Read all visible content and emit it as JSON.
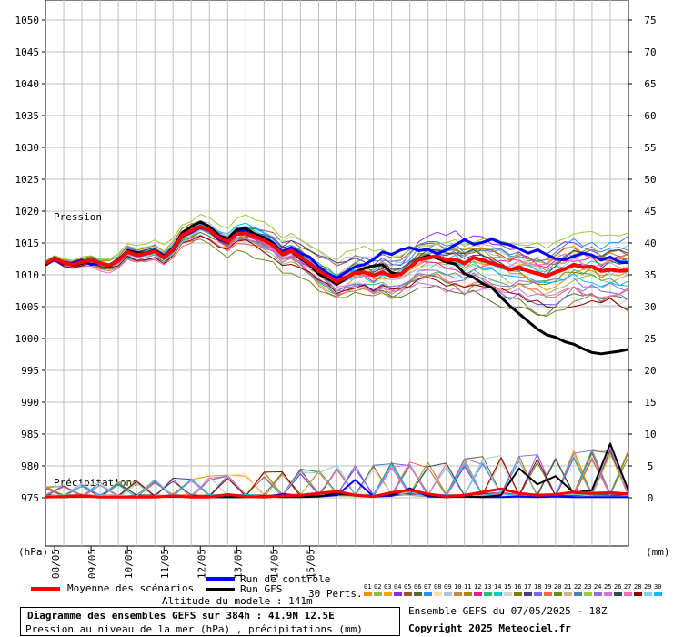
{
  "chart_data": {
    "type": "line",
    "title": "Diagramme des ensembles GEFS sur 384h : 41.9N 12.5E",
    "subtitle": "Pression au niveau de la mer (hPa) , précipitations (mm)",
    "left_unit": "(hPa)",
    "right_unit": "(mm)",
    "pressure_label": "Pression",
    "precip_label": "Précipitations",
    "pressure_ticks": [
      1050,
      1045,
      1040,
      1035,
      1030,
      1025,
      1020,
      1015,
      1010,
      1005,
      1000,
      995,
      990,
      985,
      980,
      975
    ],
    "precip_ticks": [
      75,
      70,
      65,
      60,
      55,
      50,
      45,
      40,
      35,
      30,
      25,
      20,
      15,
      10,
      5,
      0
    ],
    "x_labels": [
      "08/05",
      "09/05",
      "10/05",
      "11/05",
      "12/05",
      "13/05",
      "14/05",
      "15/05"
    ],
    "x_range_hours": [
      0,
      384
    ],
    "grid": true,
    "series_pressure": [
      {
        "name": "Moyenne des scénarios",
        "x": [
          0,
          6,
          12,
          18,
          24,
          30,
          36,
          42,
          48,
          54,
          60,
          66,
          72,
          78,
          84,
          90,
          96,
          102,
          108,
          114,
          120,
          126,
          132,
          138,
          144,
          150,
          156,
          162,
          168,
          174,
          180,
          186,
          192,
          198,
          204,
          210,
          216,
          222,
          228,
          234,
          240,
          246,
          252,
          258,
          264,
          270,
          276,
          282,
          288,
          294,
          300,
          306,
          312,
          318,
          324,
          330,
          336,
          342,
          348,
          354,
          360,
          366,
          372,
          378,
          384
        ],
        "values": [
          1011.8,
          1012.6,
          1011.9,
          1011.6,
          1012.0,
          1012.3,
          1011.8,
          1011.5,
          1012.2,
          1013.6,
          1013.1,
          1013.3,
          1013.7,
          1012.7,
          1014.0,
          1016.2,
          1016.9,
          1017.6,
          1017.0,
          1015.9,
          1015.2,
          1016.4,
          1016.5,
          1016.0,
          1015.4,
          1014.6,
          1013.3,
          1013.8,
          1012.8,
          1011.8,
          1010.6,
          1009.8,
          1008.9,
          1009.6,
          1010.3,
          1010.4,
          1009.9,
          1010.4,
          1009.8,
          1010.1,
          1011.2,
          1012.4,
          1012.7,
          1012.9,
          1012.3,
          1012.4,
          1011.8,
          1012.7,
          1012.3,
          1011.8,
          1011.4,
          1010.8,
          1011.2,
          1010.6,
          1010.2,
          1009.8,
          1010.4,
          1010.9,
          1011.6,
          1011.2,
          1011.3,
          1010.6,
          1010.8,
          1010.6,
          1010.7
        ]
      },
      {
        "name": "Run de contrôle",
        "x": [
          0,
          6,
          12,
          18,
          24,
          30,
          36,
          42,
          48,
          54,
          60,
          66,
          72,
          78,
          84,
          90,
          96,
          102,
          108,
          114,
          120,
          126,
          132,
          138,
          144,
          150,
          156,
          162,
          168,
          174,
          180,
          186,
          192,
          198,
          204,
          210,
          216,
          222,
          228,
          234,
          240,
          246,
          252,
          258,
          264,
          270,
          276,
          282,
          288,
          294,
          300,
          306,
          312,
          318,
          324,
          330,
          336,
          342,
          348,
          354,
          360,
          366,
          372,
          378,
          384
        ],
        "values": [
          1011.6,
          1012.4,
          1011.7,
          1011.9,
          1012.3,
          1011.6,
          1011.8,
          1011.5,
          1012.4,
          1013.5,
          1013.0,
          1013.2,
          1013.9,
          1013.0,
          1013.8,
          1016.0,
          1016.7,
          1017.4,
          1016.9,
          1015.6,
          1015.0,
          1016.7,
          1016.9,
          1016.1,
          1015.9,
          1015.0,
          1013.6,
          1014.3,
          1013.4,
          1012.8,
          1011.3,
          1010.2,
          1009.5,
          1010.4,
          1011.3,
          1011.6,
          1012.4,
          1013.6,
          1013.2,
          1013.9,
          1014.3,
          1013.8,
          1014.0,
          1013.3,
          1013.9,
          1014.7,
          1015.5,
          1014.8,
          1015.1,
          1015.6,
          1015.0,
          1014.7,
          1014.1,
          1013.4,
          1013.9,
          1013.2,
          1012.5,
          1012.4,
          1012.9,
          1013.4,
          1013.1,
          1012.3,
          1012.8,
          1012.0,
          1011.9
        ]
      },
      {
        "name": "Run GFS",
        "x": [
          0,
          6,
          12,
          18,
          24,
          30,
          36,
          42,
          48,
          54,
          60,
          66,
          72,
          78,
          84,
          90,
          96,
          102,
          108,
          114,
          120,
          126,
          132,
          138,
          144,
          150,
          156,
          162,
          168,
          174,
          180,
          186,
          192,
          198,
          204,
          210,
          216,
          222,
          228,
          234,
          240,
          246,
          252,
          258,
          264,
          270,
          276,
          282,
          288,
          294,
          300,
          306,
          312,
          318,
          324,
          330,
          336,
          342,
          348,
          354,
          360,
          366,
          372,
          378,
          384
        ],
        "values": [
          1011.5,
          1012.7,
          1011.9,
          1011.5,
          1011.8,
          1012.3,
          1011.9,
          1011.3,
          1012.3,
          1013.8,
          1013.5,
          1013.4,
          1013.9,
          1012.9,
          1014.2,
          1016.6,
          1017.6,
          1018.3,
          1017.6,
          1016.2,
          1015.6,
          1017.1,
          1017.3,
          1016.4,
          1015.8,
          1014.9,
          1013.2,
          1013.7,
          1012.5,
          1011.6,
          1010.1,
          1009.4,
          1008.5,
          1009.4,
          1010.4,
          1011.0,
          1011.4,
          1011.6,
          1010.3,
          1010.0,
          1011.3,
          1012.5,
          1013.0,
          1012.6,
          1012.0,
          1011.7,
          1010.2,
          1009.6,
          1008.6,
          1008.0,
          1006.5,
          1005.1,
          1003.9,
          1002.7,
          1001.5,
          1000.6,
          1000.2,
          999.5,
          999.1,
          998.4,
          997.8,
          997.6,
          997.8,
          998.0,
          998.3
        ]
      }
    ],
    "series_precip": [
      {
        "name": "Moyenne des scénarios",
        "x": [
          0,
          12,
          24,
          36,
          48,
          60,
          72,
          84,
          96,
          108,
          120,
          132,
          144,
          156,
          168,
          180,
          192,
          204,
          216,
          228,
          240,
          252,
          264,
          276,
          288,
          300,
          312,
          324,
          336,
          348,
          360,
          372,
          384
        ],
        "values": [
          0.1,
          0.2,
          0.3,
          0.1,
          0.1,
          0.1,
          0.1,
          0.3,
          0.1,
          0.1,
          0.5,
          0.2,
          0.1,
          0.3,
          0.4,
          0.7,
          1.0,
          0.4,
          0.2,
          0.8,
          1.2,
          0.6,
          0.2,
          0.4,
          0.9,
          1.4,
          0.7,
          0.4,
          0.5,
          0.9,
          0.7,
          0.8,
          0.6
        ]
      },
      {
        "name": "Run de contrôle",
        "x": [
          0,
          12,
          24,
          36,
          48,
          60,
          72,
          84,
          96,
          108,
          120,
          132,
          144,
          156,
          168,
          180,
          192,
          204,
          216,
          228,
          240,
          252,
          264,
          276,
          288,
          300,
          312,
          324,
          336,
          348,
          360,
          372,
          384
        ],
        "values": [
          0.1,
          0.1,
          0.3,
          0.1,
          0.1,
          0.1,
          0.1,
          0.2,
          0.1,
          0.1,
          0.1,
          0.1,
          0.1,
          0.6,
          0.3,
          0.2,
          0.4,
          2.8,
          0.2,
          0.3,
          1.5,
          0.2,
          0.1,
          0.2,
          0.1,
          0.1,
          0.2,
          0.1,
          0.2,
          0.1,
          0.1,
          0.1,
          0.1
        ]
      },
      {
        "name": "Run GFS",
        "x": [
          0,
          12,
          24,
          36,
          48,
          60,
          72,
          84,
          96,
          108,
          120,
          132,
          144,
          156,
          168,
          180,
          192,
          204,
          216,
          228,
          240,
          252,
          264,
          276,
          288,
          300,
          312,
          324,
          336,
          348,
          360,
          372,
          384
        ],
        "values": [
          0.1,
          0.1,
          0.2,
          0.1,
          0.1,
          0.1,
          0.1,
          0.2,
          0.1,
          0.1,
          0.1,
          0.1,
          0.2,
          0.1,
          0.1,
          0.2,
          0.7,
          0.4,
          0.2,
          0.5,
          1.4,
          0.4,
          0.1,
          0.2,
          0.1,
          0.4,
          4.6,
          2.1,
          3.4,
          0.8,
          1.2,
          8.5,
          1.1
        ]
      }
    ]
  },
  "legend": {
    "mean": "Moyenne des scénarios",
    "control": "Run de contrôle",
    "gfs": "Run GFS",
    "perts": "30 Perts.",
    "altitude": "Altitude du modele : 141m",
    "pert_numbers": [
      "01",
      "02",
      "03",
      "04",
      "05",
      "06",
      "07",
      "08",
      "09",
      "10",
      "11",
      "12",
      "13",
      "14",
      "15",
      "16",
      "17",
      "18",
      "19",
      "20",
      "21",
      "22",
      "23",
      "24",
      "25",
      "26",
      "27",
      "28",
      "29",
      "30"
    ]
  },
  "footer": {
    "ensemble": "Ensemble GEFS du 07/05/2025 - 18Z",
    "copyright": "Copyright 2025 Meteociel.fr"
  },
  "colors": {
    "mean": "#ff0000",
    "control": "#0000ff",
    "gfs": "#000000",
    "grid": "#c0c0c0",
    "pert_colors": [
      "#ff8c00",
      "#8fbc4f",
      "#ffa500",
      "#8a2be2",
      "#a0522d",
      "#556b2f",
      "#1e90ff",
      "#ffdead",
      "#b0c4de",
      "#cd853f",
      "#b8860b",
      "#ff1493",
      "#3cb371",
      "#00ced1",
      "#d3d3d3",
      "#808000",
      "#483d8b",
      "#7b68ee",
      "#ff6347",
      "#6b8e23",
      "#d2b48c",
      "#4682b4",
      "#9acd32",
      "#9370db",
      "#da70d6",
      "#2f4f4f",
      "#ff69b4",
      "#8b0000",
      "#87ceeb",
      "#00bfff"
    ]
  }
}
